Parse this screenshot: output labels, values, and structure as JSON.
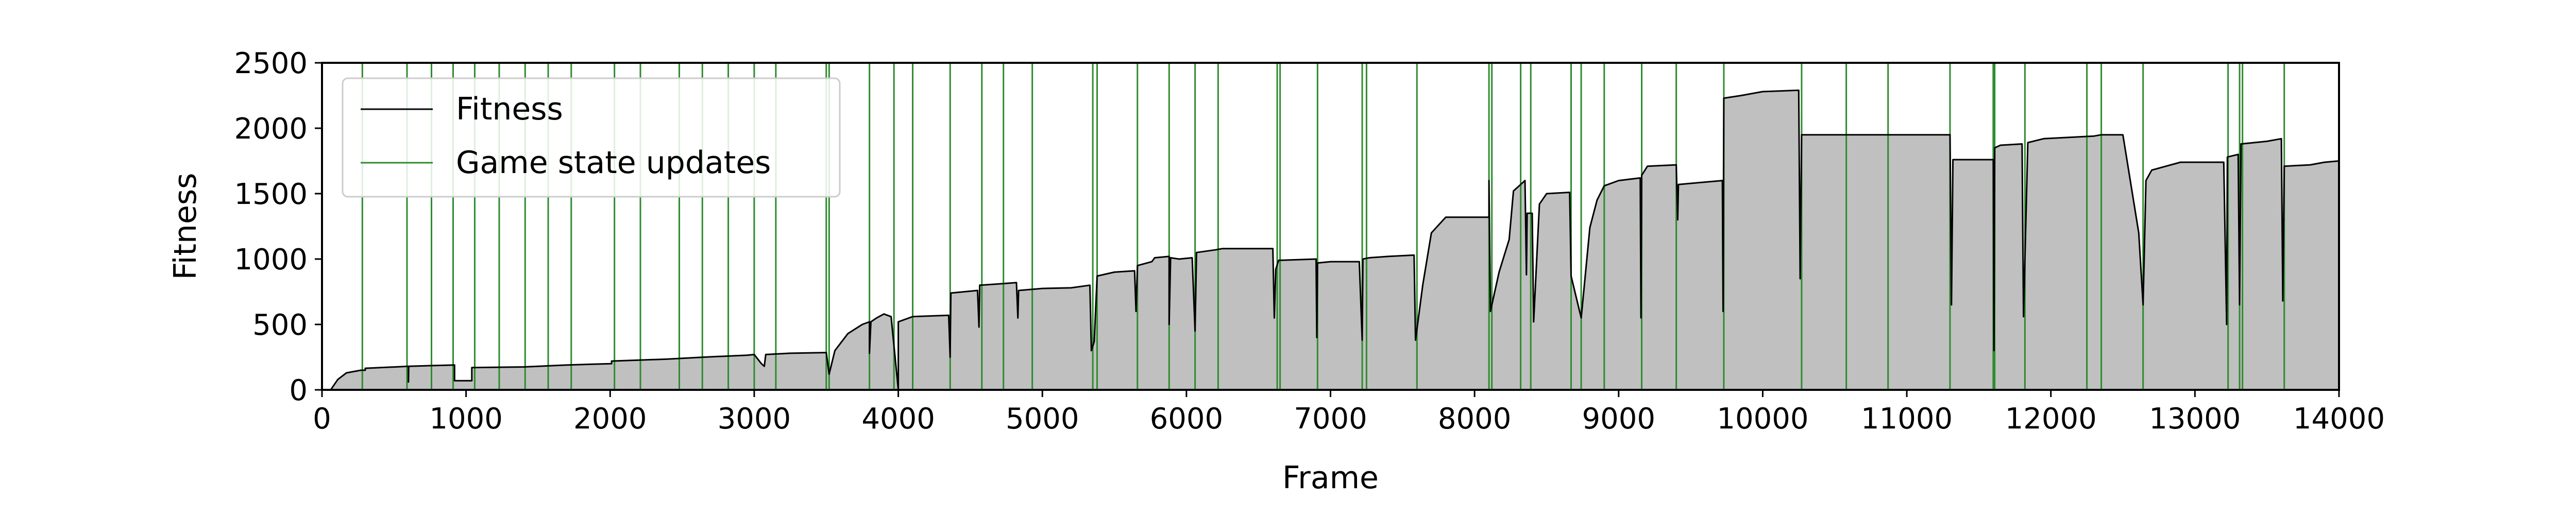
{
  "chart_data": {
    "type": "area",
    "title": "",
    "xlabel": "Frame",
    "ylabel": "Fitness",
    "xlim": [
      0,
      14000
    ],
    "ylim": [
      0,
      2500
    ],
    "xticks": [
      0,
      1000,
      2000,
      3000,
      4000,
      5000,
      6000,
      7000,
      8000,
      9000,
      10000,
      11000,
      12000,
      13000,
      14000
    ],
    "yticks": [
      0,
      500,
      1000,
      1500,
      2000,
      2500
    ],
    "grid": false,
    "legend_position": "top-left",
    "colors": {
      "fitness_line": "#000000",
      "fitness_fill": "#c0c0c0",
      "updates": "#2e8b2e"
    },
    "series": [
      {
        "name": "Fitness",
        "kind": "line-fill",
        "points": [
          [
            0,
            0
          ],
          [
            60,
            0
          ],
          [
            110,
            80
          ],
          [
            170,
            130
          ],
          [
            270,
            150
          ],
          [
            300,
            150
          ],
          [
            300,
            165
          ],
          [
            600,
            180
          ],
          [
            600,
            60
          ],
          [
            602,
            180
          ],
          [
            750,
            185
          ],
          [
            920,
            190
          ],
          [
            920,
            70
          ],
          [
            1040,
            70
          ],
          [
            1040,
            170
          ],
          [
            1400,
            175
          ],
          [
            1500,
            180
          ],
          [
            1700,
            190
          ],
          [
            2000,
            200
          ],
          [
            2010,
            200
          ],
          [
            2010,
            220
          ],
          [
            2400,
            235
          ],
          [
            2650,
            250
          ],
          [
            2950,
            265
          ],
          [
            3000,
            270
          ],
          [
            3050,
            200
          ],
          [
            3070,
            180
          ],
          [
            3080,
            270
          ],
          [
            3250,
            280
          ],
          [
            3500,
            285
          ],
          [
            3520,
            120
          ],
          [
            3560,
            300
          ],
          [
            3650,
            430
          ],
          [
            3750,
            500
          ],
          [
            3800,
            520
          ],
          [
            3800,
            280
          ],
          [
            3810,
            520
          ],
          [
            3850,
            550
          ],
          [
            3900,
            580
          ],
          [
            3950,
            560
          ],
          [
            4000,
            0
          ],
          [
            4000,
            520
          ],
          [
            4100,
            560
          ],
          [
            4350,
            570
          ],
          [
            4360,
            250
          ],
          [
            4365,
            740
          ],
          [
            4550,
            760
          ],
          [
            4560,
            480
          ],
          [
            4565,
            800
          ],
          [
            4700,
            810
          ],
          [
            4820,
            820
          ],
          [
            4830,
            550
          ],
          [
            4835,
            760
          ],
          [
            5000,
            775
          ],
          [
            5200,
            780
          ],
          [
            5330,
            800
          ],
          [
            5340,
            300
          ],
          [
            5360,
            370
          ],
          [
            5380,
            870
          ],
          [
            5500,
            900
          ],
          [
            5640,
            910
          ],
          [
            5650,
            600
          ],
          [
            5660,
            950
          ],
          [
            5760,
            980
          ],
          [
            5780,
            1010
          ],
          [
            5880,
            1020
          ],
          [
            5880,
            500
          ],
          [
            5890,
            1010
          ],
          [
            5950,
            1000
          ],
          [
            6040,
            1010
          ],
          [
            6060,
            450
          ],
          [
            6070,
            1050
          ],
          [
            6200,
            1070
          ],
          [
            6250,
            1080
          ],
          [
            6600,
            1080
          ],
          [
            6610,
            550
          ],
          [
            6620,
            920
          ],
          [
            6640,
            990
          ],
          [
            6900,
            1000
          ],
          [
            6905,
            400
          ],
          [
            6910,
            970
          ],
          [
            7000,
            980
          ],
          [
            7200,
            980
          ],
          [
            7220,
            380
          ],
          [
            7225,
            1000
          ],
          [
            7270,
            1010
          ],
          [
            7400,
            1020
          ],
          [
            7580,
            1030
          ],
          [
            7590,
            380
          ],
          [
            7640,
            800
          ],
          [
            7700,
            1200
          ],
          [
            7800,
            1320
          ],
          [
            8100,
            1320
          ],
          [
            8100,
            1600
          ],
          [
            8110,
            600
          ],
          [
            8170,
            900
          ],
          [
            8240,
            1150
          ],
          [
            8270,
            1520
          ],
          [
            8350,
            1600
          ],
          [
            8360,
            880
          ],
          [
            8365,
            1350
          ],
          [
            8400,
            1350
          ],
          [
            8410,
            520
          ],
          [
            8450,
            1420
          ],
          [
            8500,
            1500
          ],
          [
            8660,
            1510
          ],
          [
            8670,
            870
          ],
          [
            8740,
            550
          ],
          [
            8800,
            1240
          ],
          [
            8850,
            1450
          ],
          [
            8900,
            1560
          ],
          [
            9000,
            1600
          ],
          [
            9150,
            1620
          ],
          [
            9155,
            550
          ],
          [
            9160,
            1640
          ],
          [
            9200,
            1710
          ],
          [
            9400,
            1720
          ],
          [
            9410,
            1300
          ],
          [
            9415,
            1570
          ],
          [
            9720,
            1600
          ],
          [
            9725,
            600
          ],
          [
            9730,
            2230
          ],
          [
            9850,
            2250
          ],
          [
            10000,
            2280
          ],
          [
            10250,
            2290
          ],
          [
            10260,
            850
          ],
          [
            10270,
            1950
          ],
          [
            11300,
            1950
          ],
          [
            11310,
            650
          ],
          [
            11320,
            1760
          ],
          [
            11600,
            1760
          ],
          [
            11605,
            300
          ],
          [
            11610,
            1850
          ],
          [
            11650,
            1870
          ],
          [
            11800,
            1880
          ],
          [
            11810,
            560
          ],
          [
            11840,
            1890
          ],
          [
            11950,
            1920
          ],
          [
            12300,
            1940
          ],
          [
            12350,
            1950
          ],
          [
            12500,
            1950
          ],
          [
            12610,
            1200
          ],
          [
            12640,
            650
          ],
          [
            12660,
            1600
          ],
          [
            12700,
            1680
          ],
          [
            12900,
            1740
          ],
          [
            13200,
            1740
          ],
          [
            13220,
            500
          ],
          [
            13225,
            1780
          ],
          [
            13300,
            1800
          ],
          [
            13310,
            650
          ],
          [
            13320,
            1880
          ],
          [
            13500,
            1900
          ],
          [
            13600,
            1920
          ],
          [
            13610,
            680
          ],
          [
            13620,
            1710
          ],
          [
            13800,
            1720
          ],
          [
            13900,
            1740
          ],
          [
            14000,
            1750
          ]
        ]
      },
      {
        "name": "Game state updates",
        "kind": "vlines",
        "x": [
          280,
          590,
          760,
          910,
          1060,
          1230,
          1410,
          1570,
          1730,
          2030,
          2210,
          2480,
          2640,
          2820,
          3000,
          3150,
          3500,
          3520,
          3800,
          3970,
          4100,
          4360,
          4580,
          4730,
          4930,
          5350,
          5380,
          5660,
          5880,
          6060,
          6220,
          6630,
          6650,
          6910,
          7220,
          7250,
          7600,
          8100,
          8120,
          8320,
          8390,
          8670,
          8740,
          8900,
          9160,
          9400,
          9730,
          10270,
          10580,
          10870,
          11300,
          11600,
          11610,
          11820,
          12250,
          12350,
          12640,
          13230,
          13310,
          13330,
          13620
        ]
      }
    ]
  }
}
